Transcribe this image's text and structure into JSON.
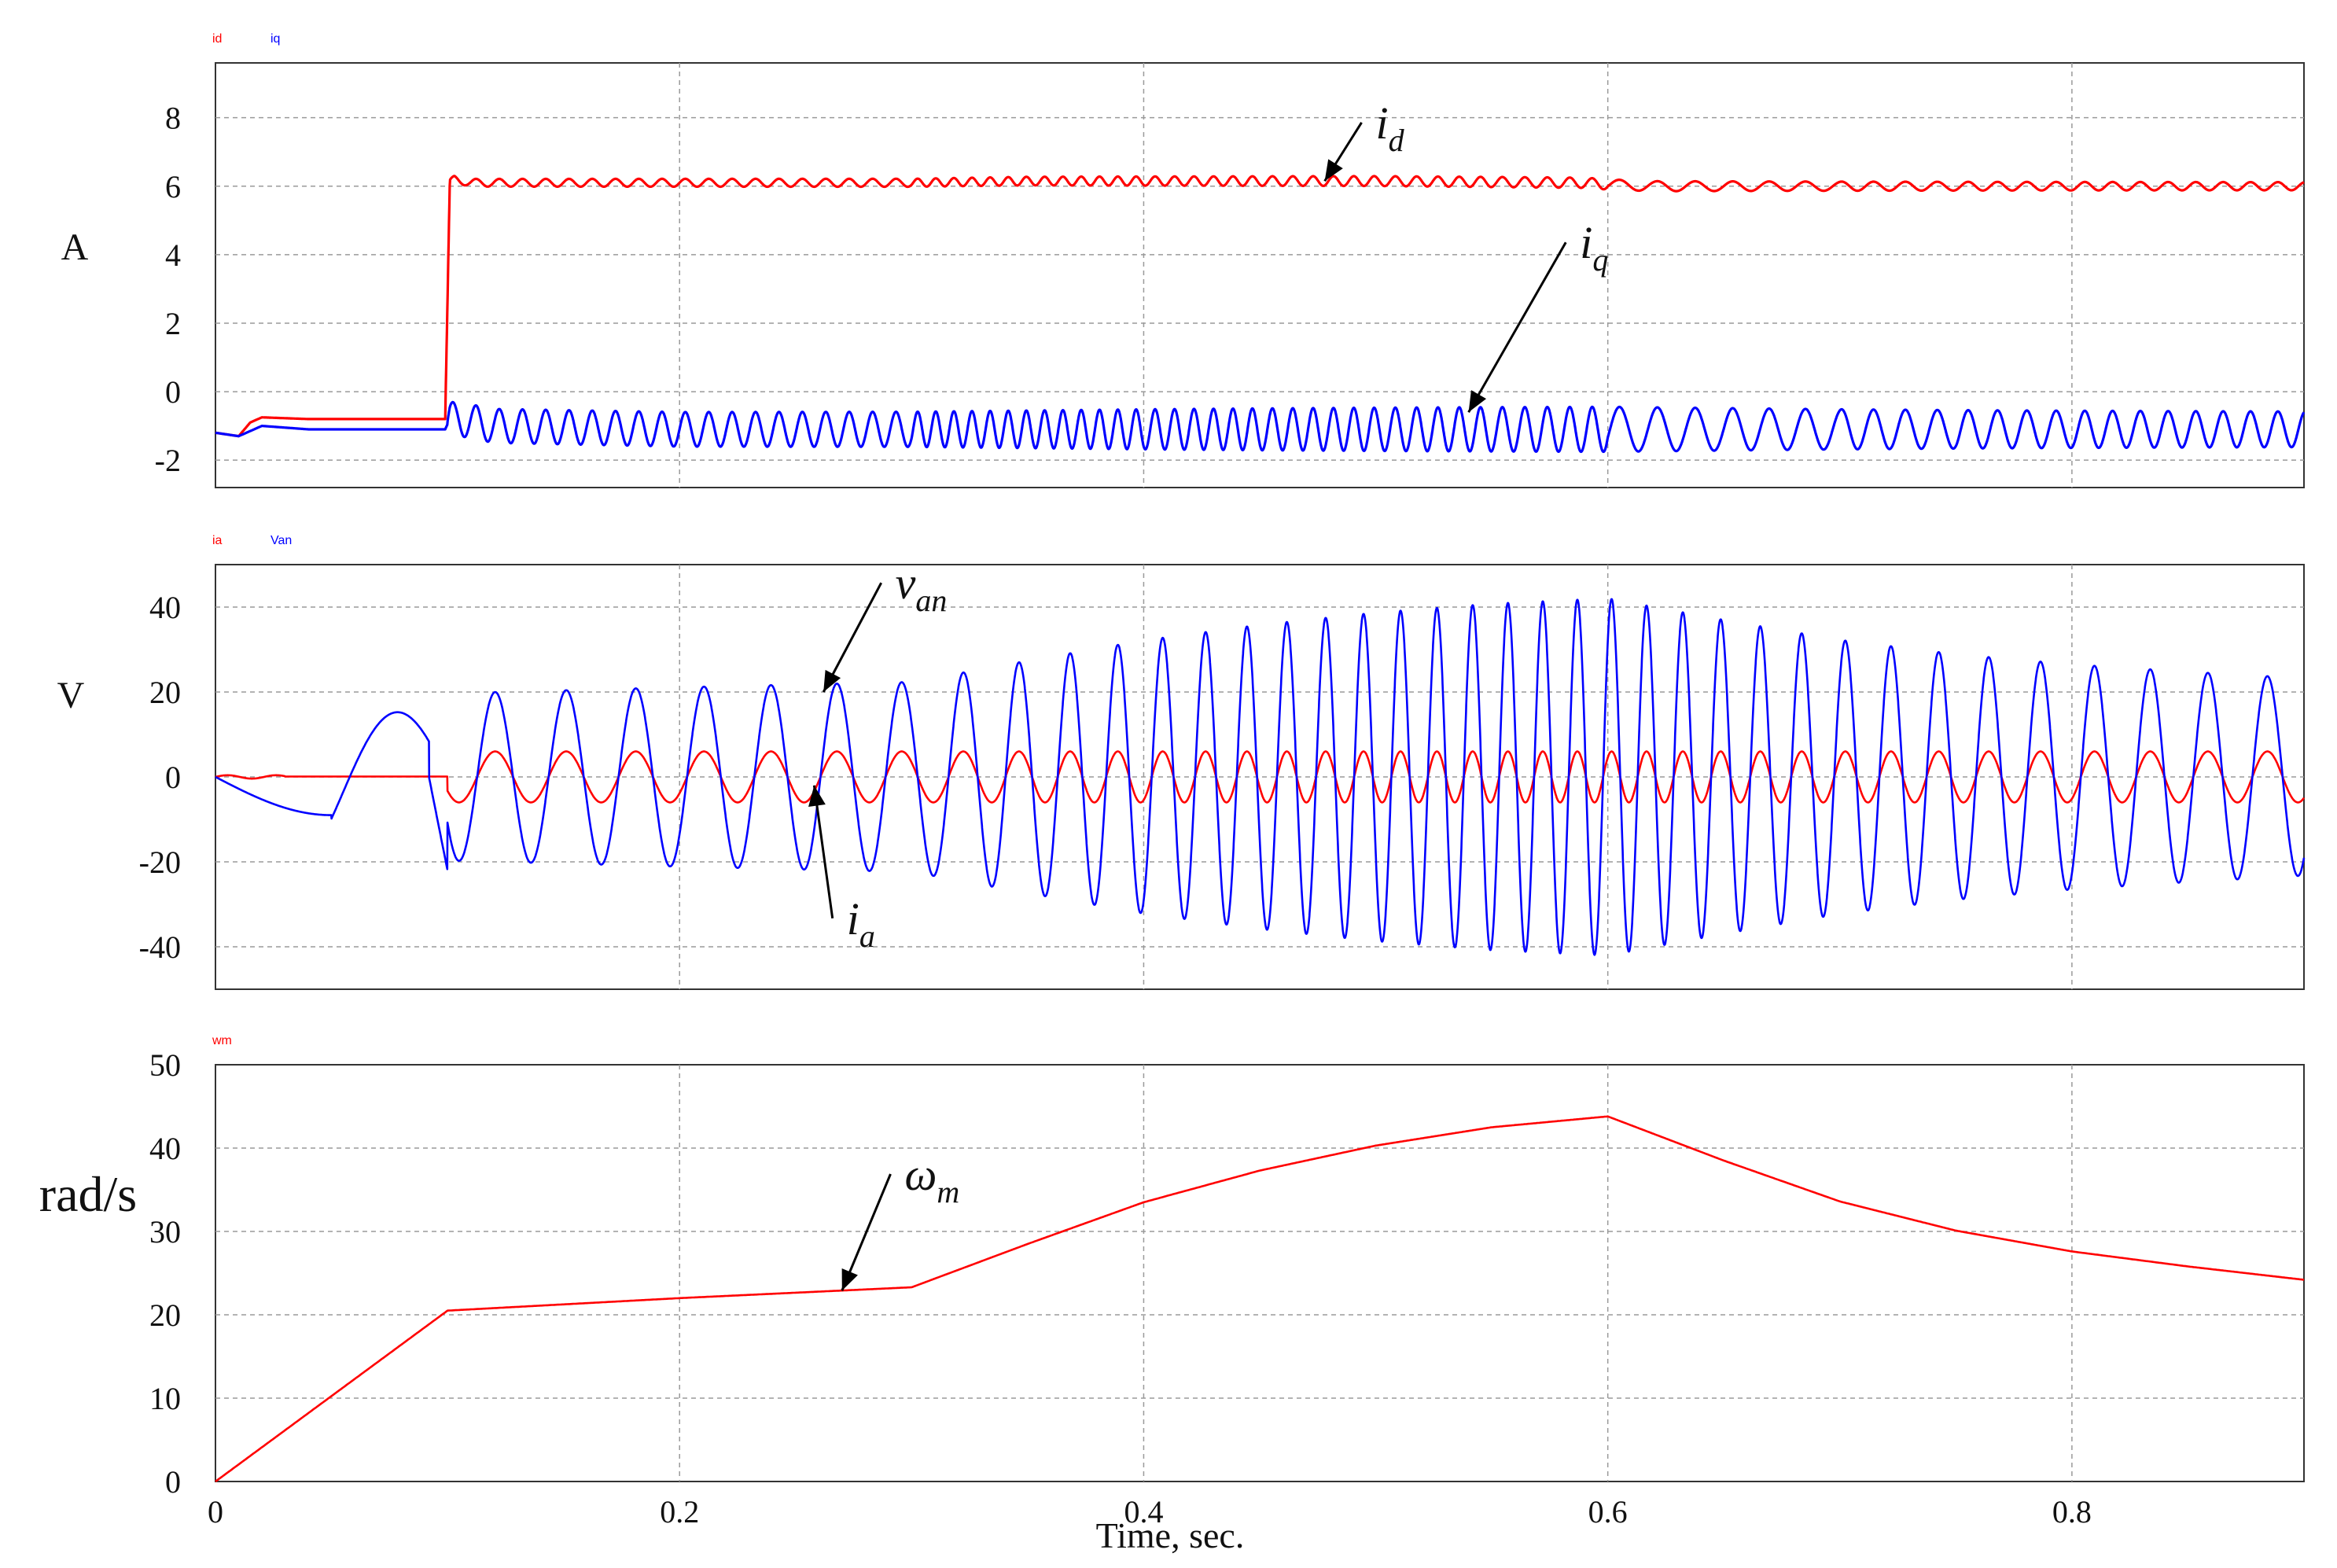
{
  "chart_data": [
    {
      "type": "line",
      "ylabel": "A",
      "xlim": [
        0,
        0.9
      ],
      "ylim": [
        -2.8,
        9.6
      ],
      "yticks": [
        8,
        6,
        4,
        2,
        0,
        -2
      ],
      "grid": true,
      "legend": [
        "id",
        "iq"
      ],
      "series": [
        {
          "name": "id",
          "color": "#ff0000",
          "x": [
            0,
            0.01,
            0.015,
            0.02,
            0.04,
            0.06,
            0.08,
            0.099,
            0.101,
            0.103,
            0.11,
            0.15,
            0.2,
            0.3,
            0.35,
            0.4,
            0.5,
            0.59,
            0.6,
            0.62,
            0.7,
            0.8,
            0.9
          ],
          "y": [
            -1.2,
            -1.3,
            -0.9,
            -0.75,
            -0.8,
            -0.8,
            -0.8,
            -0.8,
            6.1,
            6.2,
            6.1,
            6.1,
            6.1,
            6.1,
            6.15,
            6.15,
            6.15,
            6.1,
            6.05,
            6.0,
            6.0,
            6.0,
            6.0
          ],
          "ripple": 0.08
        },
        {
          "name": "iq",
          "color": "#0000ff",
          "x": [
            0,
            0.01,
            0.02,
            0.04,
            0.08,
            0.099,
            0.101,
            0.105,
            0.12,
            0.2,
            0.4,
            0.6,
            0.8,
            0.9
          ],
          "y": [
            -1.2,
            -1.3,
            -1.0,
            -1.1,
            -1.1,
            -1.1,
            -0.8,
            -0.8,
            -1.0,
            -1.1,
            -1.1,
            -1.1,
            -1.1,
            -1.1
          ],
          "ripple": 0.35
        },
        {
          "name": "i_d",
          "color": "#000000",
          "x": [],
          "y": []
        },
        {
          "name": "i_q",
          "color": "#000000",
          "x": [],
          "y": []
        }
      ],
      "annotations": [
        {
          "label": "i",
          "sub": "d",
          "x": 0.5,
          "y": 7.4,
          "arrow_to": [
            0.478,
            6.15
          ]
        },
        {
          "label": "i",
          "sub": "q",
          "x": 0.588,
          "y": 3.9,
          "arrow_to": [
            0.54,
            -0.6
          ]
        }
      ]
    },
    {
      "type": "line",
      "ylabel": "V",
      "xlim": [
        0,
        0.9
      ],
      "ylim": [
        -50,
        50
      ],
      "yticks": [
        40,
        20,
        0,
        -20,
        -40
      ],
      "grid": true,
      "legend": [
        "ia",
        "Van"
      ],
      "series": [
        {
          "name": "ia",
          "color": "#ff0000",
          "model": "pre: ~0 until 0.1 s; then sinusoid, amplitude 6, frequency proportional to omega_m",
          "amplitude": 6,
          "start": 0.1
        },
        {
          "name": "Van",
          "color": "#0000ff",
          "model": "slow transient before 0.1 s, then sinusoid with amplitude and frequency proportional to omega_m",
          "amplitude_per_rad_s": 0.96,
          "start": 0.1
        }
      ],
      "annotations": [
        {
          "label": "v",
          "sub": "an",
          "x": 0.293,
          "y": 42,
          "arrow_to": [
            0.262,
            20
          ]
        },
        {
          "label": "i",
          "sub": "a",
          "x": 0.272,
          "y": -37,
          "arrow_to": [
            0.258,
            -2
          ]
        }
      ]
    },
    {
      "type": "line",
      "ylabel": "rad/s",
      "xlabel": "Time, sec.",
      "xlim": [
        0,
        0.9
      ],
      "ylim": [
        0,
        50
      ],
      "yticks": [
        50,
        40,
        30,
        20,
        10,
        0
      ],
      "xticks": [
        0,
        0.2,
        0.4,
        0.6,
        0.8
      ],
      "grid": true,
      "legend": [
        "wm"
      ],
      "series": [
        {
          "name": "wm",
          "color": "#ff0000",
          "x": [
            0,
            0.1,
            0.2,
            0.3,
            0.35,
            0.4,
            0.45,
            0.5,
            0.55,
            0.6,
            0.65,
            0.7,
            0.75,
            0.8,
            0.85,
            0.9
          ],
          "y": [
            0,
            20.5,
            22,
            23.3,
            28.5,
            33.5,
            37.3,
            40.3,
            42.5,
            43.8,
            38.5,
            33.6,
            30.1,
            27.6,
            25.8,
            24.2
          ]
        }
      ],
      "annotations": [
        {
          "label": "ω",
          "sub": "m",
          "x": 0.297,
          "y": 35,
          "arrow_to": [
            0.27,
            22.9
          ]
        }
      ]
    }
  ]
}
